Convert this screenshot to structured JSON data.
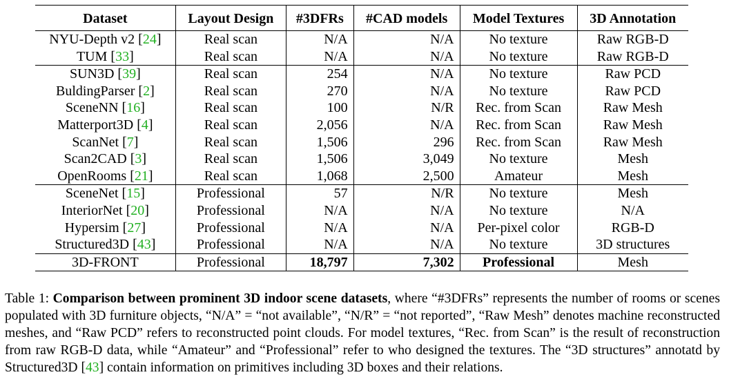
{
  "table": {
    "headers": [
      "Dataset",
      "Layout Design",
      "#3DFRs",
      "#CAD models",
      "Model Textures",
      "3D Annotation"
    ],
    "groups": [
      [
        {
          "name": "NYU-Depth v2",
          "cite": "24",
          "layout": "Real scan",
          "frs": "N/A",
          "cad": "N/A",
          "tex": "No texture",
          "ann": "Raw RGB-D"
        },
        {
          "name": "TUM",
          "cite": "33",
          "layout": "Real scan",
          "frs": "N/A",
          "cad": "N/A",
          "tex": "No texture",
          "ann": "Raw RGB-D"
        }
      ],
      [
        {
          "name": "SUN3D",
          "cite": "39",
          "layout": "Real scan",
          "frs": "254",
          "cad": "N/A",
          "tex": "No texture",
          "ann": "Raw PCD"
        },
        {
          "name": "BuldingParser",
          "cite": "2",
          "layout": "Real scan",
          "frs": "270",
          "cad": "N/A",
          "tex": "No texture",
          "ann": "Raw PCD"
        },
        {
          "name": "SceneNN",
          "cite": "16",
          "layout": "Real scan",
          "frs": "100",
          "cad": "N/R",
          "tex": "Rec. from Scan",
          "ann": "Raw Mesh"
        },
        {
          "name": "Matterport3D",
          "cite": "4",
          "layout": "Real scan",
          "frs": "2,056",
          "cad": "N/A",
          "tex": "Rec. from Scan",
          "ann": "Raw Mesh"
        },
        {
          "name": "ScanNet",
          "cite": "7",
          "layout": "Real scan",
          "frs": "1,506",
          "cad": "296",
          "tex": "Rec. from Scan",
          "ann": "Raw Mesh"
        },
        {
          "name": "Scan2CAD",
          "cite": "3",
          "layout": "Real scan",
          "frs": "1,506",
          "cad": "3,049",
          "tex": "No texture",
          "ann": "Mesh"
        },
        {
          "name": "OpenRooms",
          "cite": "21",
          "layout": "Real scan",
          "frs": "1,068",
          "cad": "2,500",
          "tex": "Amateur",
          "ann": "Mesh"
        }
      ],
      [
        {
          "name": "SceneNet",
          "cite": "15",
          "layout": "Professional",
          "frs": "57",
          "cad": "N/R",
          "tex": "No texture",
          "ann": "Mesh"
        },
        {
          "name": "InteriorNet",
          "cite": "20",
          "layout": "Professional",
          "frs": "N/A",
          "cad": "N/A",
          "tex": "No texture",
          "ann": "N/A"
        },
        {
          "name": "Hypersim",
          "cite": "27",
          "layout": "Professional",
          "frs": "N/A",
          "cad": "N/A",
          "tex": "Per-pixel color",
          "ann": "RGB-D"
        },
        {
          "name": "Structured3D",
          "cite": "43",
          "layout": "Professional",
          "frs": "N/A",
          "cad": "N/A",
          "tex": "No texture",
          "ann": "3D structures"
        }
      ],
      [
        {
          "name": "3D-FRONT",
          "cite": "",
          "layout": "Professional",
          "frs": "18,797",
          "cad": "7,302",
          "tex": "Professional",
          "ann": "Mesh",
          "bold": true
        }
      ]
    ]
  },
  "caption": {
    "label": "Table 1: ",
    "bold": "Comparison between prominent 3D indoor scene datasets",
    "text_a": ", where “#3DFRs” represents the number of rooms or scenes populated with 3D furniture objects, “N/A” = “not available”, “N/R” = “not reported”, “Raw Mesh” denotes machine reconstructed meshes, and “Raw PCD” refers to reconstructed point clouds. For model textures, “Rec. from Scan” is the result of reconstruction from raw RGB-D data, while “Amateur” and “Professional” refer to who designed the textures. The “3D structures” annotatd by Structured3D [",
    "cite": "43",
    "text_b": "] contain information on primitives including 3D boxes and their relations."
  }
}
